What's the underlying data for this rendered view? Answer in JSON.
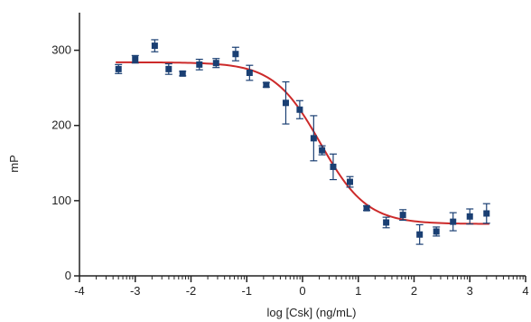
{
  "chart_data": {
    "type": "scatter",
    "xlabel": "log [Csk] (ng/mL)",
    "ylabel": "mP",
    "xlim": [
      -4,
      4
    ],
    "ylim": [
      0,
      350
    ],
    "xticks": [
      -4,
      -3,
      -2,
      -1,
      0,
      1,
      2,
      3,
      4
    ],
    "yticks": [
      0,
      100,
      200,
      300
    ],
    "grid": false,
    "colors": {
      "points": "#1a3f73",
      "fit": "#cc2a2a",
      "axis": "#222222"
    },
    "points": [
      {
        "x": -3.3,
        "y": 275,
        "err": 6
      },
      {
        "x": -3.0,
        "y": 288,
        "err": 5
      },
      {
        "x": -2.65,
        "y": 306,
        "err": 8
      },
      {
        "x": -2.4,
        "y": 275,
        "err": 7
      },
      {
        "x": -2.15,
        "y": 269,
        "err": 3
      },
      {
        "x": -1.85,
        "y": 281,
        "err": 7
      },
      {
        "x": -1.55,
        "y": 283,
        "err": 6
      },
      {
        "x": -1.2,
        "y": 295,
        "err": 9
      },
      {
        "x": -0.95,
        "y": 270,
        "err": 10
      },
      {
        "x": -0.65,
        "y": 254,
        "err": 3
      },
      {
        "x": -0.3,
        "y": 230,
        "err": 28
      },
      {
        "x": -0.05,
        "y": 221,
        "err": 12
      },
      {
        "x": 0.2,
        "y": 183,
        "err": 30
      },
      {
        "x": 0.35,
        "y": 167,
        "err": 6
      },
      {
        "x": 0.55,
        "y": 145,
        "err": 17
      },
      {
        "x": 0.85,
        "y": 125,
        "err": 7
      },
      {
        "x": 1.15,
        "y": 90,
        "err": 3
      },
      {
        "x": 1.5,
        "y": 71,
        "err": 7
      },
      {
        "x": 1.8,
        "y": 81,
        "err": 7
      },
      {
        "x": 2.1,
        "y": 55,
        "err": 13
      },
      {
        "x": 2.4,
        "y": 59,
        "err": 6
      },
      {
        "x": 2.7,
        "y": 72,
        "err": 12
      },
      {
        "x": 3.0,
        "y": 79,
        "err": 10
      },
      {
        "x": 3.3,
        "y": 83,
        "err": 13
      }
    ],
    "fit": {
      "model": "sigmoid",
      "top": 284,
      "bottom": 69,
      "midpoint": 0.32,
      "slope": 2.4,
      "x_range": [
        -3.35,
        3.35
      ]
    }
  }
}
